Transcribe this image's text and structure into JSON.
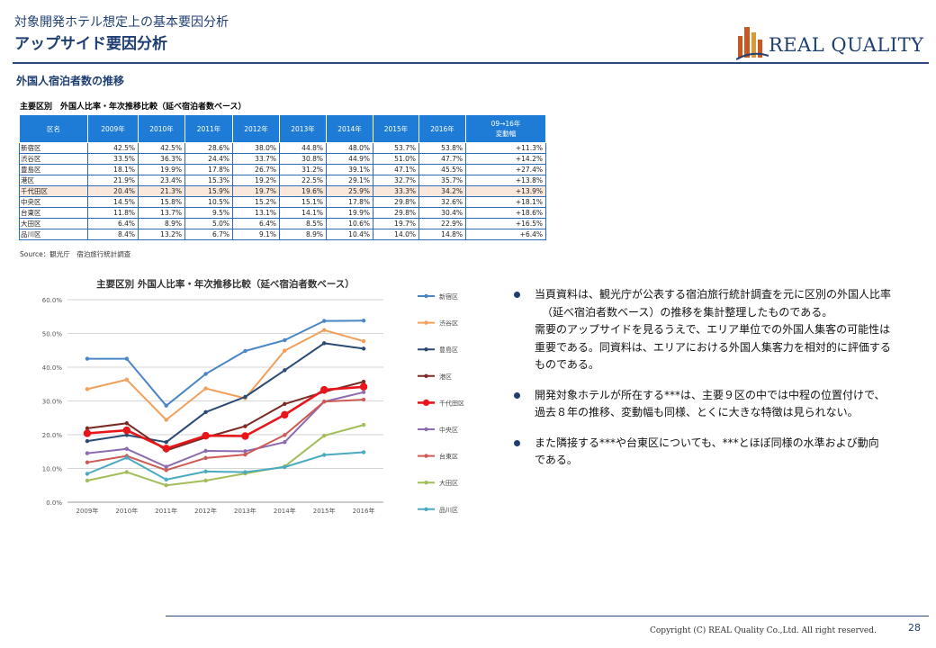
{
  "header": {
    "subtitle": "対象開発ホテル想定上の基本要因分析",
    "title": "アップサイド要因分析",
    "logo_text": "REAL QUALITY"
  },
  "section_title": "外国人宿泊者数の推移",
  "table": {
    "title": "主要区別　外国人比率・年次推移比較（延べ宿泊者数ベース）",
    "headers": [
      "区名",
      "2009年",
      "2010年",
      "2011年",
      "2012年",
      "2013年",
      "2014年",
      "2015年",
      "2016年"
    ],
    "change_header_1": "09→16年",
    "change_header_2": "変動幅",
    "rows": [
      {
        "cells": [
          "新宿区",
          "42.5%",
          "42.5%",
          "28.6%",
          "38.0%",
          "44.8%",
          "48.0%",
          "53.7%",
          "53.8%",
          "+11.3%"
        ]
      },
      {
        "cells": [
          "渋谷区",
          "33.5%",
          "36.3%",
          "24.4%",
          "33.7%",
          "30.8%",
          "44.9%",
          "51.0%",
          "47.7%",
          "+14.2%"
        ]
      },
      {
        "cells": [
          "豊島区",
          "18.1%",
          "19.9%",
          "17.8%",
          "26.7%",
          "31.2%",
          "39.1%",
          "47.1%",
          "45.5%",
          "+27.4%"
        ]
      },
      {
        "cells": [
          "港区",
          "21.9%",
          "23.4%",
          "15.3%",
          "19.2%",
          "22.5%",
          "29.1%",
          "32.7%",
          "35.7%",
          "+13.8%"
        ]
      },
      {
        "cells": [
          "千代田区",
          "20.4%",
          "21.3%",
          "15.9%",
          "19.7%",
          "19.6%",
          "25.9%",
          "33.3%",
          "34.2%",
          "+13.9%"
        ],
        "highlight": true
      },
      {
        "cells": [
          "中央区",
          "14.5%",
          "15.8%",
          "10.5%",
          "15.2%",
          "15.1%",
          "17.8%",
          "29.8%",
          "32.6%",
          "+18.1%"
        ]
      },
      {
        "cells": [
          "台東区",
          "11.8%",
          "13.7%",
          "9.5%",
          "13.1%",
          "14.1%",
          "19.9%",
          "29.8%",
          "30.4%",
          "+18.6%"
        ]
      },
      {
        "cells": [
          "大田区",
          "6.4%",
          "8.9%",
          "5.0%",
          "6.4%",
          "8.5%",
          "10.6%",
          "19.7%",
          "22.9%",
          "+16.5%"
        ]
      },
      {
        "cells": [
          "品川区",
          "8.4%",
          "13.2%",
          "6.7%",
          "9.1%",
          "8.9%",
          "10.4%",
          "14.0%",
          "14.8%",
          "+6.4%"
        ]
      }
    ],
    "source": "Source：観光庁　宿泊旅行統計調査"
  },
  "chart_data": {
    "type": "line",
    "title": "主要区別 外国人比率・年次推移比較（延べ宿泊者数ベース）",
    "x": [
      "2009年",
      "2010年",
      "2011年",
      "2012年",
      "2013年",
      "2014年",
      "2015年",
      "2016年"
    ],
    "ylim": [
      0,
      60
    ],
    "yticks": [
      "0.0%",
      "10.0%",
      "20.0%",
      "30.0%",
      "40.0%",
      "50.0%",
      "60.0%"
    ],
    "grid": true,
    "legend_position": "right",
    "series": [
      {
        "name": "新宿区",
        "color": "#4a86c5",
        "values": [
          42.5,
          42.5,
          28.6,
          38.0,
          44.8,
          48.0,
          53.7,
          53.8
        ]
      },
      {
        "name": "渋谷区",
        "color": "#f0a05a",
        "values": [
          33.5,
          36.3,
          24.4,
          33.7,
          30.8,
          44.9,
          51.0,
          47.7
        ]
      },
      {
        "name": "豊島区",
        "color": "#2a4a72",
        "values": [
          18.1,
          19.9,
          17.8,
          26.7,
          31.2,
          39.1,
          47.1,
          45.5
        ]
      },
      {
        "name": "港区",
        "color": "#7a2a24",
        "values": [
          21.9,
          23.4,
          15.3,
          19.2,
          22.5,
          29.1,
          32.7,
          35.7
        ]
      },
      {
        "name": "千代田区",
        "color": "#e8161b",
        "values": [
          20.4,
          21.3,
          15.9,
          19.7,
          19.6,
          25.9,
          33.3,
          34.2
        ],
        "emphasis": true
      },
      {
        "name": "中央区",
        "color": "#8c6bb0",
        "values": [
          14.5,
          15.8,
          10.5,
          15.2,
          15.1,
          17.8,
          29.8,
          32.6
        ]
      },
      {
        "name": "台東区",
        "color": "#cd5a55",
        "values": [
          11.8,
          13.7,
          9.5,
          13.1,
          14.1,
          19.9,
          29.8,
          30.4
        ]
      },
      {
        "name": "大田区",
        "color": "#a2bd5a",
        "values": [
          6.4,
          8.9,
          5.0,
          6.4,
          8.5,
          10.6,
          19.7,
          22.9
        ]
      },
      {
        "name": "品川区",
        "color": "#4aaac0",
        "values": [
          8.4,
          13.2,
          6.7,
          9.1,
          8.9,
          10.4,
          14.0,
          14.8
        ]
      }
    ]
  },
  "bullets": [
    {
      "lines": [
        "当頁資料は、観光庁が公表する宿泊旅行統計調査を元に区別の外国人比率",
        "（延べ宿泊者数ベース）の推移を集計整理したものである。",
        "需要のアップサイドを見るうえで、エリア単位での外国人集客の可能性は",
        "重要である。同資料は、エリアにおける外国人集客力を相対的に評価する",
        "ものである。"
      ]
    },
    {
      "lines": [
        "開発対象ホテルが所在する***は、主要９区の中では中程の位置付けで、",
        "過去８年の推移、変動幅も同様、とくに大きな特徴は見られない。"
      ]
    },
    {
      "lines": [
        "また隣接する***や台東区についても、***とほぼ同様の水準および動向",
        "である。"
      ]
    }
  ],
  "footer": {
    "copyright": "Copyright (C) REAL Quality Co.,Ltd. All right reserved.",
    "page_number": "28"
  }
}
